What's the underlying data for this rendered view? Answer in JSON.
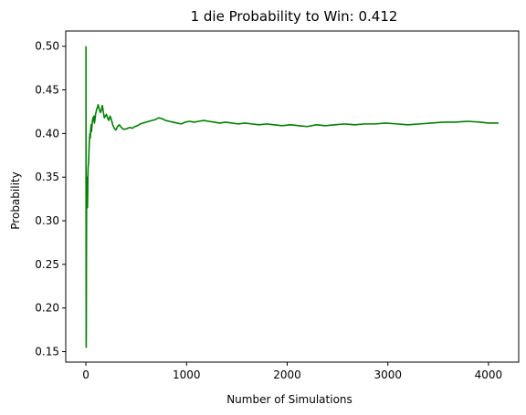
{
  "chart_data": {
    "type": "line",
    "title": "1 die Probability to Win: 0.412",
    "xlabel": "Number of Simulations",
    "ylabel": "Probability",
    "xlim": [
      -200,
      4300
    ],
    "ylim": [
      0.138,
      0.5175
    ],
    "x_ticks": [
      0,
      1000,
      2000,
      3000,
      4000
    ],
    "y_ticks": [
      0.15,
      0.2,
      0.25,
      0.3,
      0.35,
      0.4,
      0.45,
      0.5
    ],
    "y_tick_labels": [
      "0.15",
      "0.20",
      "0.25",
      "0.30",
      "0.35",
      "0.40",
      "0.45",
      "0.50"
    ],
    "x_tick_labels": [
      "0",
      "1000",
      "2000",
      "3000",
      "4000"
    ],
    "grid": false,
    "legend": "none",
    "series": [
      {
        "color": "#008000",
        "x": [
          1,
          2,
          3,
          4,
          5,
          6,
          7,
          8,
          9,
          10,
          12,
          14,
          16,
          18,
          20,
          22,
          25,
          28,
          31,
          34,
          37,
          40,
          44,
          48,
          52,
          56,
          60,
          65,
          70,
          75,
          80,
          85,
          90,
          96,
          102,
          108,
          115,
          122,
          130,
          138,
          146,
          155,
          164,
          173,
          183,
          193,
          204,
          215,
          227,
          240,
          253,
          267,
          282,
          298,
          315,
          333,
          352,
          372,
          393,
          415,
          438,
          462,
          487,
          513,
          540,
          568,
          597,
          627,
          658,
          690,
          723,
          757,
          792,
          828,
          866,
          905,
          945,
          987,
          1030,
          1075,
          1120,
          1170,
          1220,
          1275,
          1330,
          1390,
          1450,
          1515,
          1580,
          1650,
          1720,
          1795,
          1870,
          1950,
          2030,
          2115,
          2200,
          2290,
          2380,
          2475,
          2570,
          2670,
          2770,
          2875,
          2980,
          3090,
          3200,
          3315,
          3430,
          3550,
          3670,
          3795,
          3920,
          4000,
          4050,
          4100
        ],
        "y": [
          0.5,
          0.25,
          0.155,
          0.18,
          0.24,
          0.28,
          0.32,
          0.34,
          0.33,
          0.35,
          0.34,
          0.32,
          0.315,
          0.33,
          0.35,
          0.36,
          0.365,
          0.37,
          0.38,
          0.39,
          0.395,
          0.4,
          0.395,
          0.405,
          0.41,
          0.402,
          0.408,
          0.414,
          0.418,
          0.415,
          0.42,
          0.412,
          0.416,
          0.422,
          0.425,
          0.428,
          0.43,
          0.433,
          0.429,
          0.426,
          0.424,
          0.428,
          0.432,
          0.425,
          0.418,
          0.42,
          0.422,
          0.418,
          0.415,
          0.42,
          0.416,
          0.41,
          0.406,
          0.404,
          0.408,
          0.41,
          0.407,
          0.405,
          0.405,
          0.406,
          0.407,
          0.406,
          0.408,
          0.409,
          0.411,
          0.412,
          0.413,
          0.414,
          0.415,
          0.416,
          0.418,
          0.417,
          0.415,
          0.414,
          0.413,
          0.412,
          0.411,
          0.413,
          0.414,
          0.413,
          0.414,
          0.415,
          0.414,
          0.413,
          0.412,
          0.413,
          0.412,
          0.411,
          0.412,
          0.411,
          0.41,
          0.411,
          0.41,
          0.409,
          0.41,
          0.409,
          0.408,
          0.41,
          0.409,
          0.41,
          0.411,
          0.41,
          0.411,
          0.411,
          0.412,
          0.411,
          0.41,
          0.411,
          0.412,
          0.413,
          0.413,
          0.414,
          0.413,
          0.412,
          0.412,
          0.412
        ]
      }
    ]
  }
}
